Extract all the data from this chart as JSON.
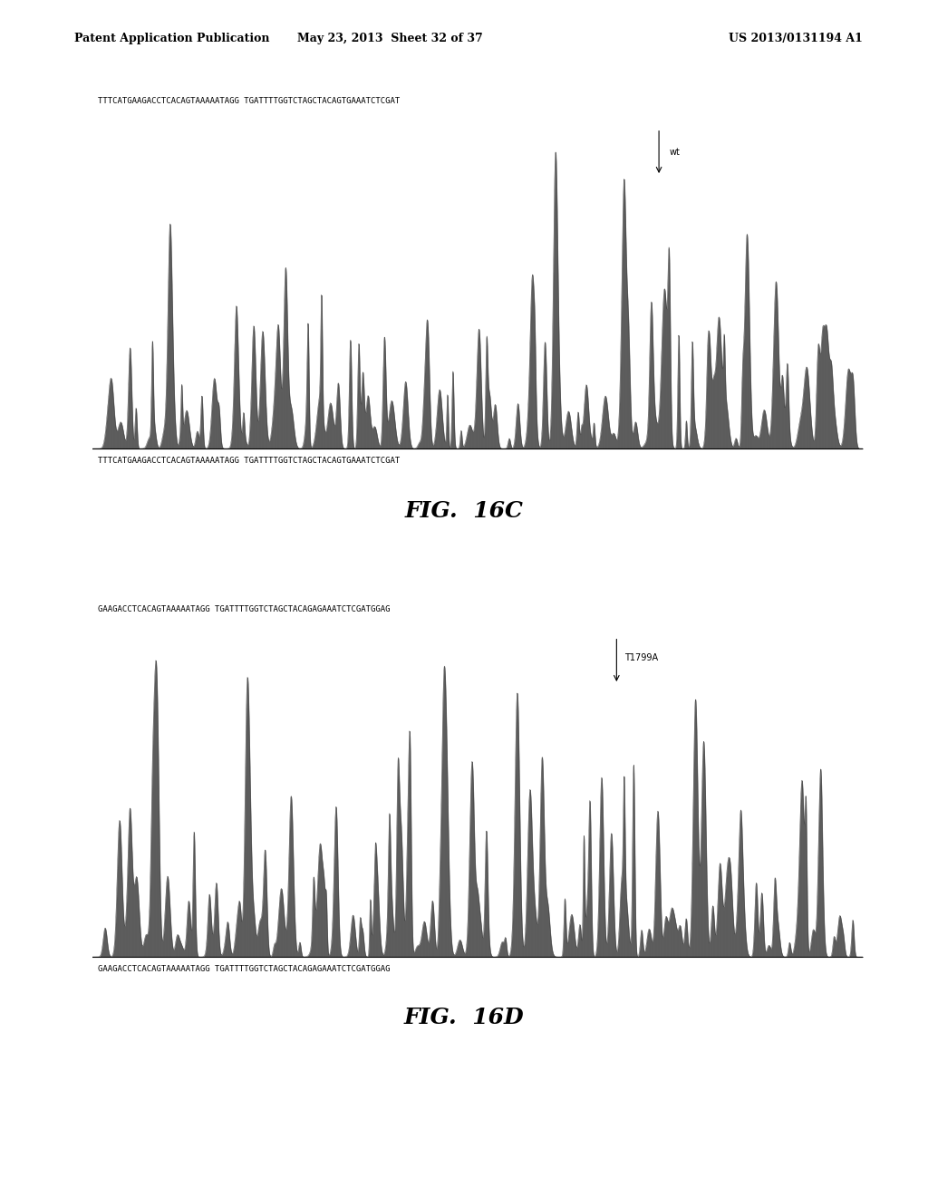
{
  "header_left": "Patent Application Publication",
  "header_mid": "May 23, 2013  Sheet 32 of 37",
  "header_right": "US 2013/0131194 A1",
  "fig_c_label": "FIG.  16C",
  "fig_d_label": "FIG.  16D",
  "seq_c": "TTTCATGAAGACCTCACAGTAAAAATAGG TGATTTTGGTCTAGCTACAGTGAAATCTCGAT",
  "seq_d": "GAAGACCTCACAGTAAAAATAGG TGATTTTGGTCTAGCTACAGAGAAATCTCGATGGAG",
  "annotation_c": "wt",
  "annotation_d": "T1799A",
  "background_color": "#ffffff",
  "chromatogram_color": "#404040",
  "text_color": "#000000",
  "fig_label_color": "#000000"
}
